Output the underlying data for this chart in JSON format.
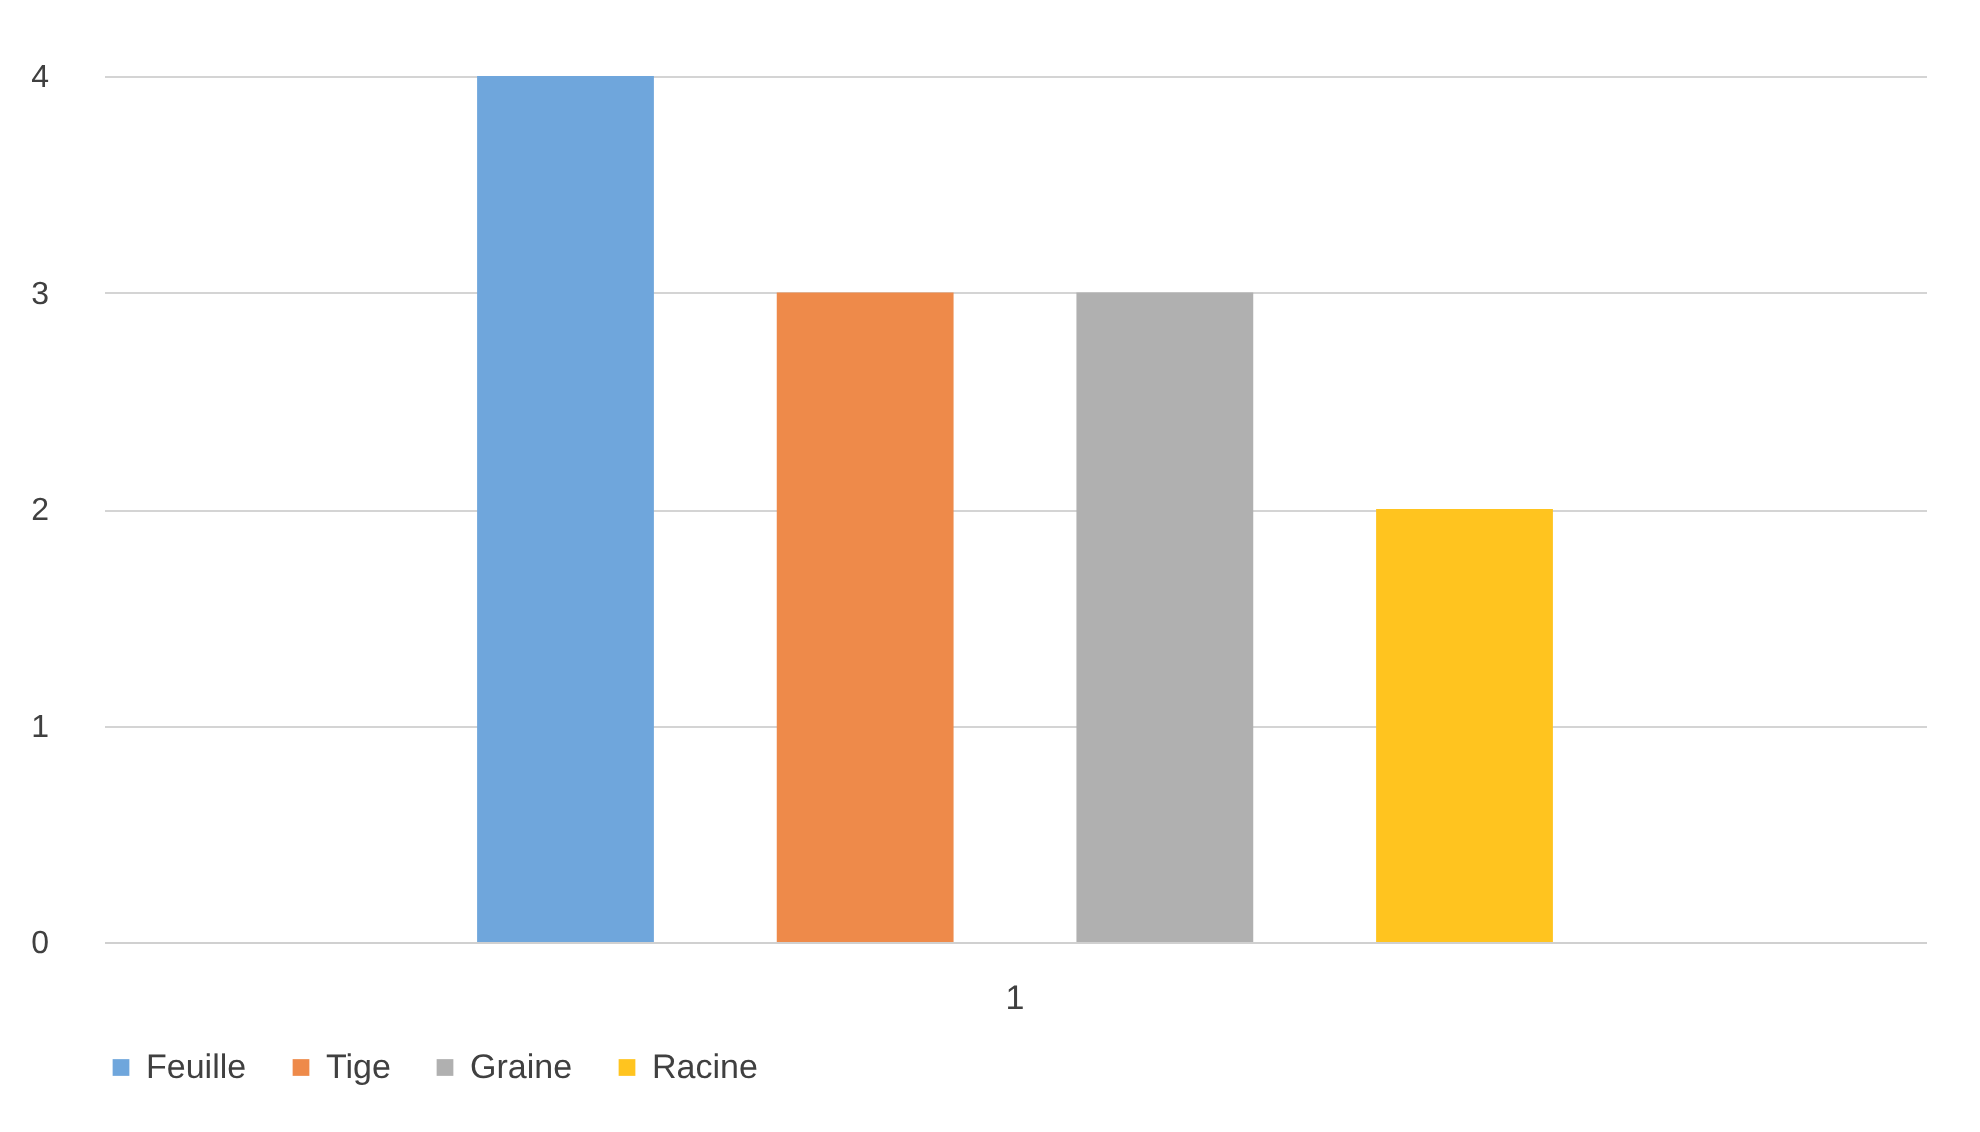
{
  "chart_data": {
    "type": "bar",
    "categories": [
      "1"
    ],
    "series": [
      {
        "name": "Feuille",
        "color": "#6fa6dc",
        "values": [
          4
        ]
      },
      {
        "name": "Tige",
        "color": "#ee8a4a",
        "values": [
          3
        ]
      },
      {
        "name": "Graine",
        "color": "#b0b0b0",
        "values": [
          3
        ]
      },
      {
        "name": "Racine",
        "color": "#ffc41f",
        "values": [
          2
        ]
      }
    ],
    "ylim": [
      0,
      4
    ],
    "yticks": [
      0,
      1,
      2,
      3,
      4
    ],
    "grid": "y",
    "legend": "bottom"
  }
}
